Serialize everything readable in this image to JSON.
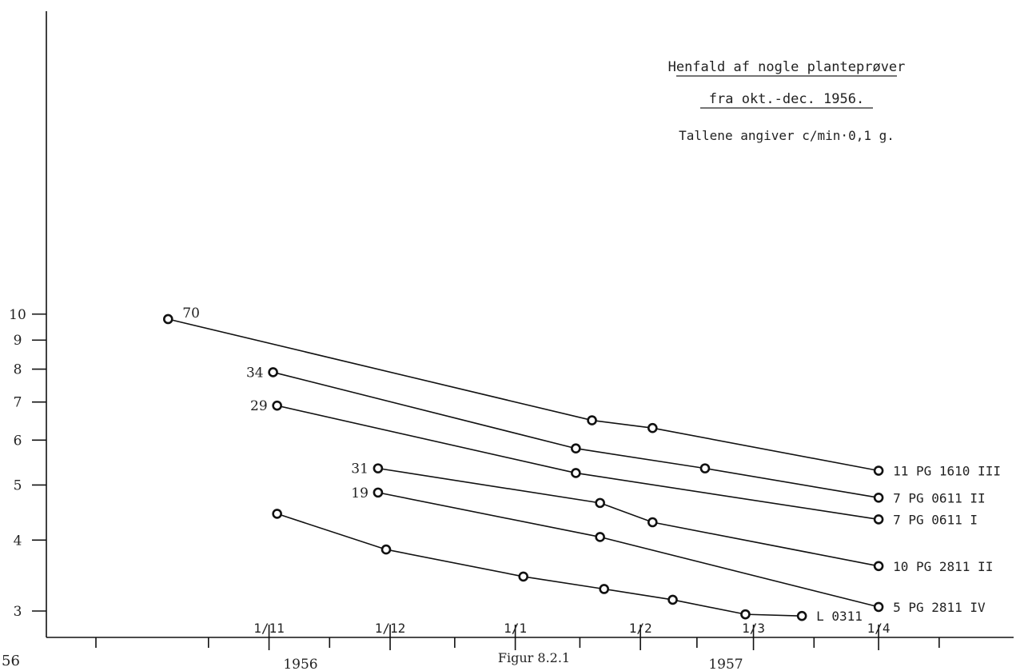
{
  "chart_data": {
    "type": "line",
    "title": "Henfald af nogle planteprøver",
    "title_line2": "fra okt.-dec. 1956.",
    "subtitle": "Tallene angiver c/min·0,1 g.",
    "caption": "Figur 8.2.1",
    "corner_label": "56",
    "y_scale": "log",
    "ylim": [
      2.9,
      10.3
    ],
    "y_ticks": [
      3,
      4,
      5,
      6,
      7,
      8,
      9,
      10
    ],
    "y_tick_labels": [
      "3",
      "4",
      "5",
      "6",
      "7",
      "8",
      "9",
      "10"
    ],
    "x_unit": "day of year from 1 Oct 1956",
    "xlim": [
      0,
      212
    ],
    "x_major_ticks": [
      31,
      61,
      92,
      123,
      151,
      182
    ],
    "x_tick_labels": [
      "1/11",
      "1/12",
      "1/1",
      "1/2",
      "1/3",
      "1/4"
    ],
    "x_minor_ticks": [
      16,
      46,
      77,
      108,
      137,
      166,
      197
    ],
    "year_labels": [
      "1956",
      "1957"
    ],
    "series": [
      {
        "name": "11 PG 1610 III",
        "start_label": "70",
        "x": [
          6,
          111,
          126,
          182
        ],
        "y": [
          9.8,
          6.5,
          6.3,
          5.3
        ]
      },
      {
        "name": "7 PG 0611 II",
        "start_label": "34",
        "x": [
          32,
          107,
          139,
          182
        ],
        "y": [
          7.9,
          5.8,
          5.35,
          4.75
        ]
      },
      {
        "name": "7 PG 0611 I",
        "start_label": "29",
        "x": [
          33,
          107,
          182
        ],
        "y": [
          6.9,
          5.25,
          4.35
        ]
      },
      {
        "name": "10 PG 2811 II",
        "start_label": "31",
        "x": [
          58,
          113,
          126,
          182
        ],
        "y": [
          5.35,
          4.65,
          4.3,
          3.6
        ]
      },
      {
        "name": "5 PG 2811 IV",
        "start_label": "19",
        "x": [
          58,
          113,
          182
        ],
        "y": [
          4.85,
          4.05,
          3.05
        ]
      },
      {
        "name": "L 0311",
        "start_label": "",
        "x": [
          33,
          60,
          94,
          114,
          131,
          149,
          163
        ],
        "y": [
          4.45,
          3.85,
          3.45,
          3.28,
          3.14,
          2.96,
          2.94
        ]
      }
    ]
  }
}
